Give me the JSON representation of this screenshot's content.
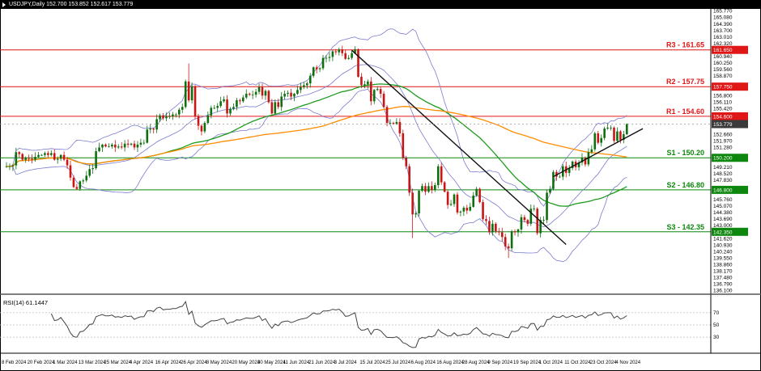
{
  "title_bar": {
    "symbol_info": "USDJPY,Daily 152.700 153.852 152.617 153.779"
  },
  "chart_data": {
    "type": "candlestick",
    "symbol": "USDJPY",
    "timeframe": "Daily",
    "quote": {
      "open": "152.700",
      "high": "153.852",
      "low": "152.617",
      "close": "153.779"
    },
    "current_price": 153.779,
    "current_price_label": "153.779",
    "colors": {
      "bull": "#0e6f0e",
      "bear": "#c81616",
      "resistance": "#e01717",
      "support": "#0d870d",
      "bollinger": "#7b7bd0",
      "ma_fast": "#1e9b1e",
      "ma_slow": "#ff8c00",
      "background": "#ffffff",
      "axis_text": "#000000",
      "current_box": "#3a3a3a"
    },
    "x_tick_step": 8,
    "x_tick_labels": [
      "8 Feb 2024",
      "20 Feb 2024",
      "1 Mar 2024",
      "13 Mar 2024",
      "25 Mar 2024",
      "4 Apr 2024",
      "16 Apr 2024",
      "26 Apr 2024",
      "8 May 2024",
      "20 May 2024",
      "30 May 2024",
      "11 Jun 2024",
      "21 Jun 2024",
      "3 Jul 2024",
      "15 Jul 2024",
      "25 Jul 2024",
      "6 Aug 2024",
      "16 Aug 2024",
      "28 Aug 2024",
      "9 Sep 2024",
      "19 Sep 2024",
      "1 Oct 2024",
      "11 Oct 2024",
      "23 Oct 2024",
      "4 Nov 2024"
    ],
    "y_axis": {
      "min": 136.13,
      "max": 165.77,
      "ticks": [
        165.77,
        165.08,
        164.39,
        163.7,
        163.01,
        162.32,
        161.63,
        160.94,
        160.25,
        159.56,
        158.87,
        158.18,
        157.49,
        156.8,
        156.11,
        155.42,
        154.73,
        154.04,
        153.35,
        152.66,
        151.97,
        151.28,
        150.59,
        149.9,
        149.21,
        148.52,
        147.83,
        147.14,
        146.45,
        145.76,
        145.07,
        144.38,
        143.69,
        143.0,
        142.31,
        141.62,
        140.93,
        140.24,
        139.55,
        138.86,
        138.17,
        137.48,
        136.79,
        136.1
      ]
    },
    "levels": [
      {
        "id": "R3",
        "label": "R3 - 161.65",
        "price": 161.65,
        "axis_price": "161.650",
        "type": "resistance"
      },
      {
        "id": "R2",
        "label": "R2 - 157.75",
        "price": 157.75,
        "axis_price": "157.750",
        "type": "resistance"
      },
      {
        "id": "R1",
        "label": "R1 - 154.60",
        "price": 154.6,
        "axis_price": "154.600",
        "type": "resistance"
      },
      {
        "id": "S1",
        "label": "S1 - 150.20",
        "price": 150.2,
        "axis_price": "150.200",
        "type": "support"
      },
      {
        "id": "S2",
        "label": "S2 - 146.80",
        "price": 146.8,
        "axis_price": "146.800",
        "type": "support"
      },
      {
        "id": "S3",
        "label": "S3 - 142.35",
        "price": 142.35,
        "axis_price": "142.350",
        "type": "support"
      }
    ],
    "closes": [
      149.3,
      149.3,
      149.4,
      150.8,
      150.6,
      150.0,
      150.2,
      150.1,
      150.0,
      150.3,
      150.5,
      150.5,
      150.7,
      150.5,
      150.7,
      150.0,
      150.1,
      150.5,
      150.0,
      149.4,
      148.1,
      147.1,
      146.9,
      147.7,
      147.8,
      148.3,
      149.0,
      149.1,
      150.9,
      151.3,
      151.6,
      151.4,
      151.4,
      151.6,
      151.3,
      151.4,
      151.3,
      151.7,
      151.6,
      151.7,
      151.3,
      151.6,
      151.8,
      151.8,
      153.2,
      153.3,
      153.2,
      154.3,
      154.7,
      154.4,
      154.6,
      154.6,
      154.8,
      154.8,
      155.3,
      155.6,
      158.3,
      156.3,
      157.8,
      154.6,
      153.6,
      153.0,
      153.9,
      154.7,
      155.5,
      155.5,
      155.7,
      156.2,
      156.4,
      154.9,
      155.4,
      155.6,
      156.3,
      156.2,
      156.6,
      157.0,
      156.9,
      156.9,
      157.2,
      157.7,
      156.8,
      157.3,
      156.1,
      154.9,
      156.1,
      155.6,
      156.7,
      157.0,
      157.1,
      156.7,
      157.0,
      157.4,
      157.7,
      157.9,
      158.1,
      158.9,
      159.8,
      159.6,
      159.7,
      160.8,
      160.8,
      160.9,
      161.5,
      161.4,
      161.7,
      161.3,
      160.7,
      160.8,
      161.3,
      161.7,
      158.8,
      157.9,
      158.0,
      158.3,
      156.2,
      157.4,
      157.5,
      157.0,
      155.6,
      153.9,
      153.9,
      153.8,
      154.0,
      152.8,
      150.2,
      149.3,
      146.5,
      144.2,
      144.3,
      146.7,
      147.2,
      146.6,
      147.2,
      146.8,
      147.3,
      149.3,
      147.6,
      146.6,
      145.2,
      145.3,
      146.3,
      144.4,
      144.5,
      144.9,
      144.6,
      145.0,
      146.2,
      146.9,
      145.5,
      143.7,
      143.5,
      142.3,
      143.2,
      142.4,
      142.3,
      141.8,
      140.8,
      140.6,
      142.4,
      142.3,
      142.6,
      143.9,
      143.6,
      143.2,
      144.8,
      144.8,
      142.2,
      143.6,
      143.6,
      146.5,
      146.9,
      148.7,
      148.2,
      148.2,
      149.3,
      148.6,
      149.1,
      149.8,
      149.2,
      149.7,
      150.2,
      149.5,
      150.8,
      151.1,
      152.8,
      151.8,
      152.3,
      153.3,
      153.4,
      153.4,
      152.0,
      153.0,
      152.1,
      152.7,
      153.779
    ],
    "wick_overrides": {
      "56": {
        "high": 158.5
      },
      "57": {
        "high": 160.2
      },
      "110": {
        "high": 161.8
      },
      "127": {
        "low": 141.68
      },
      "157": {
        "low": 139.58
      },
      "194": {
        "open": 152.7,
        "high": 153.852,
        "low": 152.617
      }
    },
    "indicators": {
      "bollinger": {
        "period": 20,
        "deviation": 2,
        "color": "#7b7bd0"
      },
      "ma_fast": {
        "period": 50,
        "color": "#1e9b1e"
      },
      "ma_slow": {
        "period": 100,
        "color": "#ff8c00"
      }
    },
    "trendlines": [
      {
        "name": "trendline-descending",
        "from_index": 108,
        "from_price": 161.6,
        "to_index": 175,
        "to_price": 141.0
      },
      {
        "name": "trendline-ascending",
        "from_index": 171,
        "from_price": 148.2,
        "to_index": 199,
        "to_price": 153.3
      }
    ],
    "rsi": {
      "label": "RSI(14) 61.1447",
      "period": 14,
      "value": 61.1447,
      "ticks": [
        70,
        50,
        30
      ],
      "range": [
        0,
        100
      ]
    }
  }
}
